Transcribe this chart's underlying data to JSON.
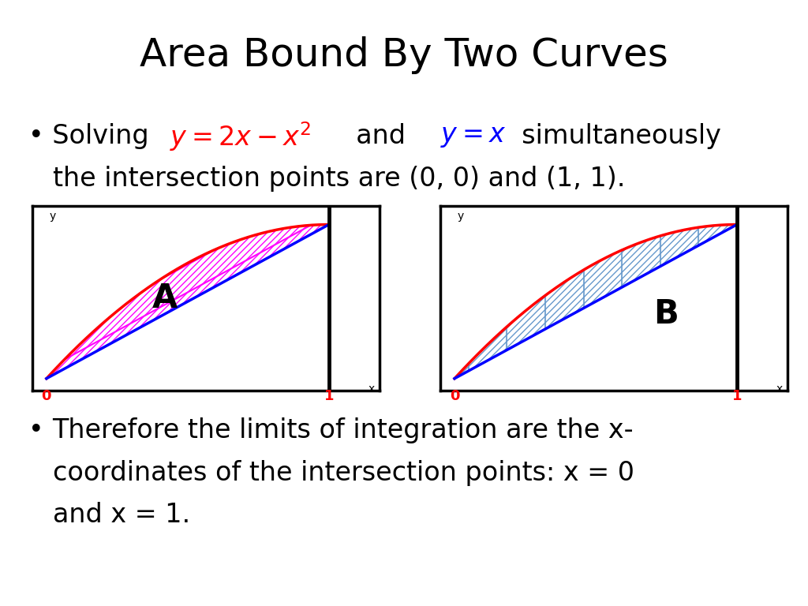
{
  "title": "Area Bound By Two Curves",
  "title_fontsize": 36,
  "background_color": "#ffffff",
  "bullet1_part1": "• Solving  ",
  "bullet1_formula1": "$y=2x-x^2$",
  "bullet1_and": "  and  ",
  "bullet1_formula2": "$y=x$",
  "bullet1_part2": "  simultaneously",
  "bullet1_line2": "the intersection points are (0, 0) and (1, 1).",
  "bullet2_line1": "Therefore the limits of integration are the x-",
  "bullet2_line2": "coordinates of the intersection points: x = 0",
  "bullet2_line3": "and x = 1.",
  "text_fontsize": 24,
  "graph_A_label": "A",
  "graph_B_label": "B",
  "curve_parabola_color": "#ff0000",
  "curve_line_color": "#0000ff",
  "hatching_color_A": "#ff00ff",
  "hatching_color_B": "#6699cc",
  "label_0_color": "#ff0000",
  "label_1_color": "#ff0000",
  "x_label": "x",
  "y_label": "y",
  "formula1_color": "#ff0000",
  "formula2_color": "#0000ff"
}
